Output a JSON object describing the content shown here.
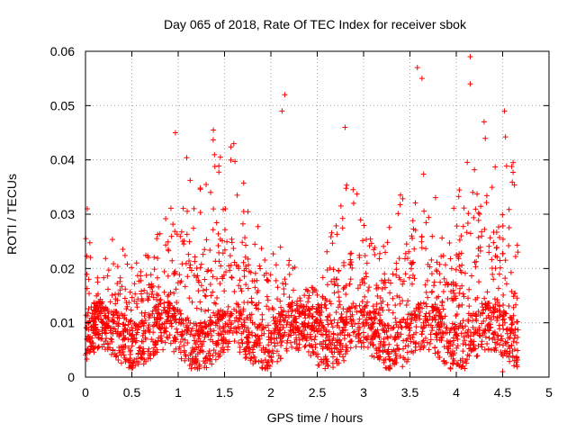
{
  "chart_data": {
    "type": "scatter",
    "title": "Day 065 of 2018, Rate Of TEC Index for receiver sbok",
    "xlabel": "GPS time / hours",
    "ylabel": "ROTI / TECUs",
    "xlim": [
      0,
      5
    ],
    "ylim": [
      0,
      0.06
    ],
    "x_ticks": [
      0,
      0.5,
      1,
      1.5,
      2,
      2.5,
      3,
      3.5,
      4,
      4.5,
      5
    ],
    "x_tick_labels": [
      "0",
      "0.5",
      "1",
      "1.5",
      "2",
      "2.5",
      "3",
      "3.5",
      "4",
      "4.5",
      "5"
    ],
    "y_ticks": [
      0,
      0.01,
      0.02,
      0.03,
      0.04,
      0.05,
      0.06
    ],
    "y_tick_labels": [
      "0",
      "0.01",
      "0.02",
      "0.03",
      "0.04",
      "0.05",
      "0.06"
    ],
    "grid": true,
    "marker": "plus",
    "color": "#ff0000",
    "series": [
      {
        "name": "ROTI",
        "x_range": [
          0,
          4.67
        ],
        "band_envelope": {
          "description": "upper envelope of point cloud (hours, TECU/s)",
          "x": [
            0,
            0.05,
            0.1,
            0.3,
            0.5,
            0.75,
            0.9,
            1.0,
            1.1,
            1.2,
            1.35,
            1.5,
            1.6,
            1.75,
            1.9,
            2.0,
            2.1,
            2.2,
            2.35,
            2.5,
            2.7,
            2.9,
            3.0,
            3.15,
            3.3,
            3.45,
            3.6,
            3.75,
            3.9,
            4.05,
            4.2,
            4.35,
            4.5,
            4.67
          ],
          "y": [
            0.031,
            0.026,
            0.017,
            0.026,
            0.022,
            0.025,
            0.035,
            0.045,
            0.042,
            0.032,
            0.045,
            0.04,
            0.044,
            0.038,
            0.031,
            0.027,
            0.026,
            0.023,
            0.018,
            0.017,
            0.03,
            0.04,
            0.03,
            0.025,
            0.028,
            0.038,
            0.057,
            0.035,
            0.025,
            0.038,
            0.059,
            0.04,
            0.049,
            0.039
          ]
        },
        "baseline_range": [
          0.003,
          0.012
        ],
        "notable_points": [
          {
            "x": 0.02,
            "y": 0.031
          },
          {
            "x": 0.97,
            "y": 0.045
          },
          {
            "x": 1.38,
            "y": 0.0455
          },
          {
            "x": 1.6,
            "y": 0.043
          },
          {
            "x": 2.15,
            "y": 0.052
          },
          {
            "x": 2.12,
            "y": 0.049
          },
          {
            "x": 2.8,
            "y": 0.046
          },
          {
            "x": 3.58,
            "y": 0.057
          },
          {
            "x": 3.63,
            "y": 0.055
          },
          {
            "x": 4.15,
            "y": 0.059
          },
          {
            "x": 4.15,
            "y": 0.054
          },
          {
            "x": 4.3,
            "y": 0.047
          },
          {
            "x": 4.52,
            "y": 0.049
          },
          {
            "x": 4.5,
            "y": 0.001
          }
        ]
      }
    ]
  }
}
